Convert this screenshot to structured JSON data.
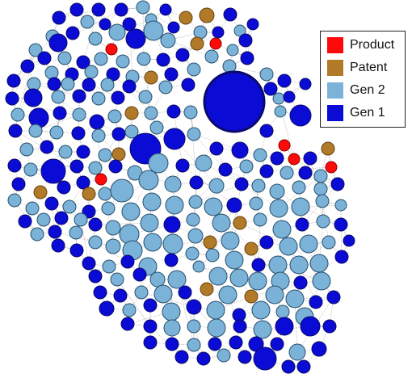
{
  "legend": {
    "items": [
      {
        "label": "Product",
        "color": "#FF0A0A"
      },
      {
        "label": "Patent",
        "color": "#B07A28"
      },
      {
        "label": "Gen 2",
        "color": "#7BB2D8"
      },
      {
        "label": "Gen 1",
        "color": "#0B0BD6"
      }
    ]
  },
  "colors": {
    "edge": "#9A9A9A",
    "stroke_gen1": "#0A0A6A",
    "stroke_gen2": "#28506E",
    "stroke_patent": "#6A4310",
    "stroke_product": "#8A0000"
  }
}
